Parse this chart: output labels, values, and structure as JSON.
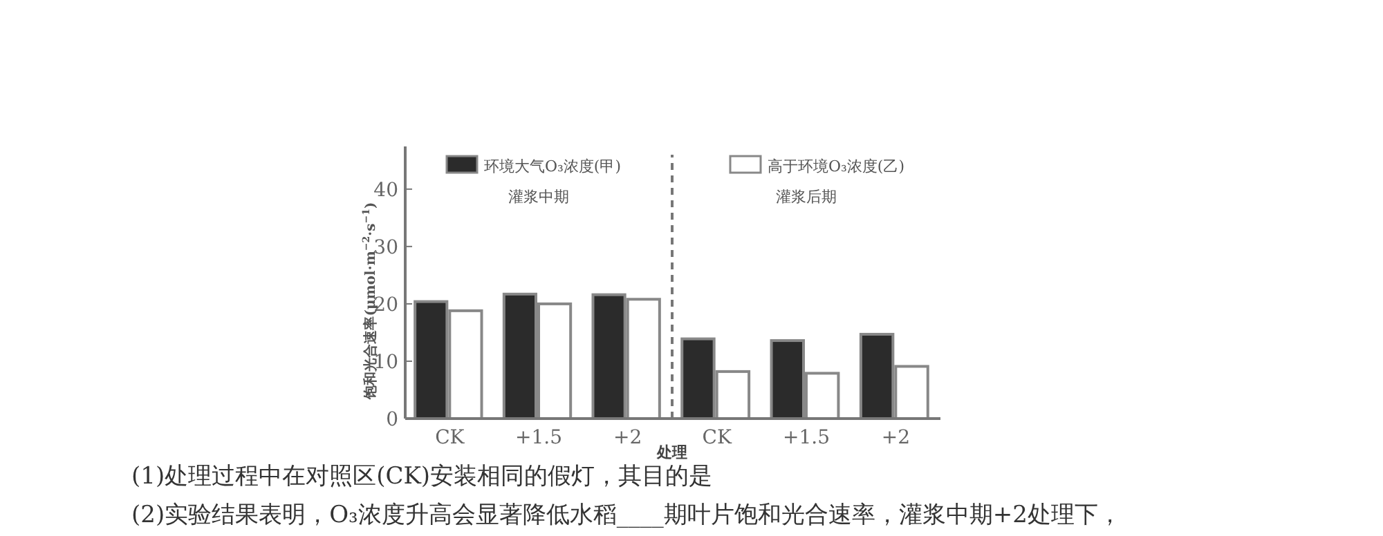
{
  "chart_data": [
    {
      "type": "bar",
      "title": "灌浆中期",
      "ylabel": "饱和光合速率(μmol·m$^{−2}$·s$^{−1}$)",
      "xlabel": "处理",
      "categories": [
        "CK",
        "+1.5",
        "+2"
      ],
      "series": [
        {
          "name": "环境大气O₃浓度(甲)",
          "color": "#2b2b2b",
          "values": [
            20.4,
            21.7,
            21.6
          ]
        },
        {
          "name": "高于环境O₃浓度(乙)",
          "color": "#ffffff",
          "values": [
            18.8,
            20.0,
            20.8
          ]
        }
      ],
      "ylim": [
        0,
        46
      ],
      "yticks": [
        0,
        10,
        20,
        30,
        40
      ],
      "legend": "top",
      "annotations": [
        "(1)处理过程中在对照区(CK)安装相同的假灯，其目的是",
        "(2)实验结果表明，O₃浓度升高会显著降低水稻____期叶片饱和光合速率，灌浆中期+2处理下，"
      ]
    },
    {
      "type": "bar",
      "title": "灌浆后期",
      "categories": [
        "CK",
        "+1.5",
        "+2"
      ],
      "series": [
        {
          "color": "#2b2b2b",
          "values": [
            13.9,
            13.6,
            14.7
          ]
        },
        {
          "color": "#ffffff",
          "values": [
            8.2,
            7.9,
            9.1
          ]
        }
      ],
      "ylim": [
        0,
        46
      ],
      "tick_labels": "x"
    }
  ]
}
